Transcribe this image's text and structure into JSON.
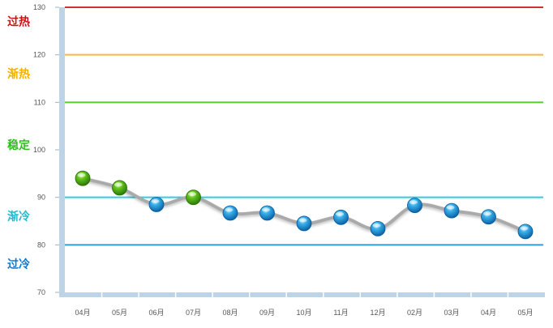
{
  "chart_data": {
    "type": "line",
    "categories": [
      "04月",
      "05月",
      "06月",
      "07月",
      "08月",
      "09月",
      "10月",
      "11月",
      "12月",
      "02月",
      "03月",
      "04月",
      "05月"
    ],
    "values": [
      94,
      92,
      88.5,
      90,
      86.7,
      86.7,
      84.5,
      85.8,
      83.4,
      88.3,
      87.2,
      85.9,
      82.8
    ],
    "point_colors": [
      "green",
      "green",
      "blue",
      "green",
      "blue",
      "blue",
      "blue",
      "blue",
      "blue",
      "blue",
      "blue",
      "blue",
      "blue"
    ],
    "ylim": [
      70,
      130
    ],
    "yticks": [
      70,
      80,
      90,
      100,
      110,
      120,
      130
    ],
    "title": "",
    "xlabel": "",
    "ylabel": "",
    "grid": false,
    "threshold_lines": [
      {
        "value": 130,
        "color": "#cc3333"
      },
      {
        "value": 120,
        "color": "#f5b942"
      },
      {
        "value": 110,
        "color": "#55cc33"
      },
      {
        "value": 90,
        "color": "#33ccdd"
      },
      {
        "value": 80,
        "color": "#3399dd"
      }
    ],
    "zone_labels": [
      {
        "text": "过热",
        "value": 127,
        "color": "#cc1111"
      },
      {
        "text": "渐热",
        "value": 116,
        "color": "#f5b000"
      },
      {
        "text": "稳定",
        "value": 101,
        "color": "#33bb22"
      },
      {
        "text": "渐冷",
        "value": 86,
        "color": "#22bbcc"
      },
      {
        "text": "过冷",
        "value": 76,
        "color": "#1177cc"
      }
    ],
    "line_color": "#aaaaaa"
  }
}
